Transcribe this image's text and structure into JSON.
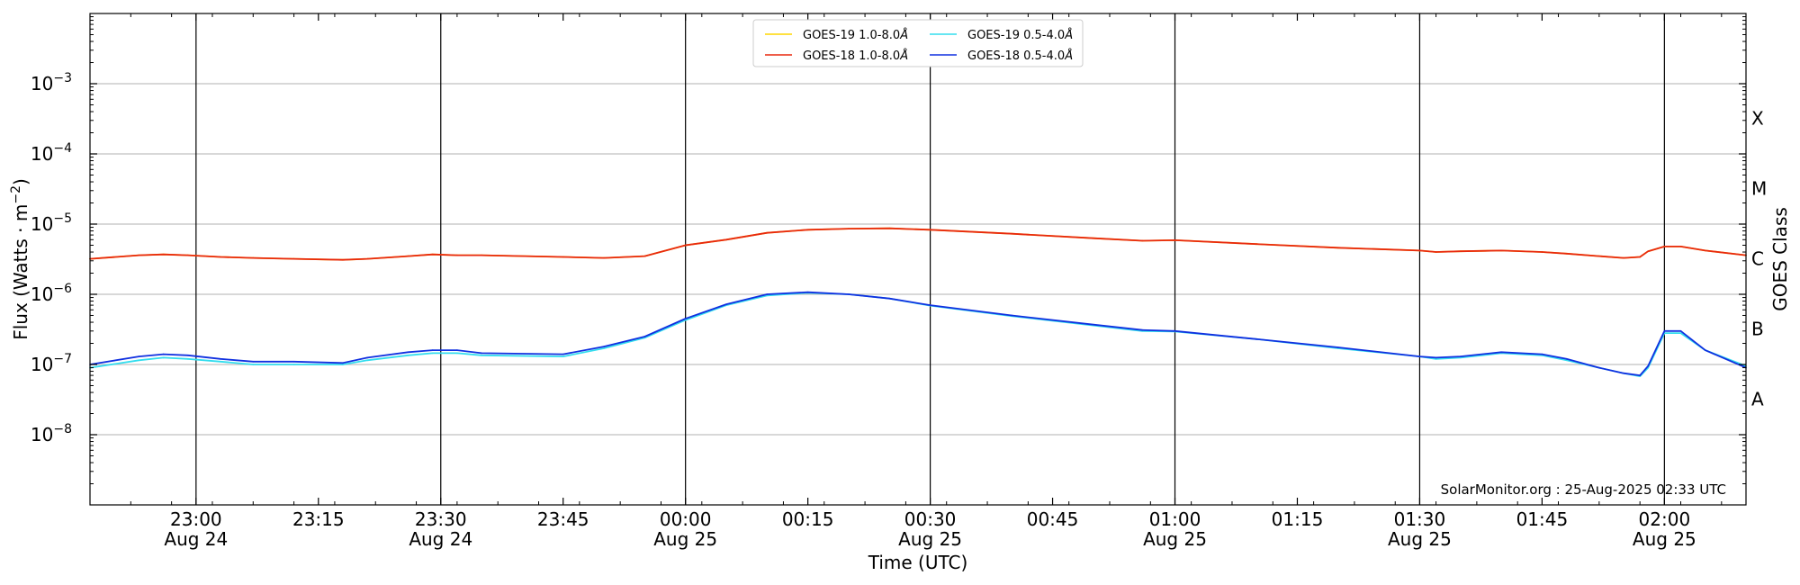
{
  "chart_data": {
    "type": "line",
    "y_scale": "log",
    "ylim": [
      1e-09,
      0.01
    ],
    "xlim": [
      "2025-08-24 22:47",
      "2025-08-25 02:10"
    ],
    "grid": "horizontal at decades; vertical lines at half-hour marks",
    "xlabel": "Time (UTC)",
    "ylabel": "Flux (Watts · m",
    "ylabel_sup": "−2",
    "ylabel_close": ")",
    "right_axis_label": "GOES Class",
    "y_ticks": [
      {
        "base": "10",
        "exp": "−8",
        "value": 1e-08
      },
      {
        "base": "10",
        "exp": "−7",
        "value": 1e-07
      },
      {
        "base": "10",
        "exp": "−6",
        "value": 1e-06
      },
      {
        "base": "10",
        "exp": "−5",
        "value": 1e-05
      },
      {
        "base": "10",
        "exp": "−4",
        "value": 0.0001
      },
      {
        "base": "10",
        "exp": "−3",
        "value": 0.001
      }
    ],
    "goes_classes": [
      {
        "label": "A",
        "value": 3.2e-08
      },
      {
        "label": "B",
        "value": 3.2e-07
      },
      {
        "label": "C",
        "value": 3.2e-06
      },
      {
        "label": "M",
        "value": 3.2e-05
      },
      {
        "label": "X",
        "value": 0.00032
      }
    ],
    "x_ticks": [
      {
        "time": "2025-08-24 23:00",
        "label": "23:00",
        "date": "Aug 24",
        "vline": true
      },
      {
        "time": "2025-08-24 23:15",
        "label": "23:15",
        "date": "",
        "vline": false
      },
      {
        "time": "2025-08-24 23:30",
        "label": "23:30",
        "date": "Aug 24",
        "vline": true
      },
      {
        "time": "2025-08-24 23:45",
        "label": "23:45",
        "date": "",
        "vline": false
      },
      {
        "time": "2025-08-25 00:00",
        "label": "00:00",
        "date": "Aug 25",
        "vline": true
      },
      {
        "time": "2025-08-25 00:15",
        "label": "00:15",
        "date": "",
        "vline": false
      },
      {
        "time": "2025-08-25 00:30",
        "label": "00:30",
        "date": "Aug 25",
        "vline": true
      },
      {
        "time": "2025-08-25 00:45",
        "label": "00:45",
        "date": "",
        "vline": false
      },
      {
        "time": "2025-08-25 01:00",
        "label": "01:00",
        "date": "Aug 25",
        "vline": true
      },
      {
        "time": "2025-08-25 01:15",
        "label": "01:15",
        "date": "",
        "vline": false
      },
      {
        "time": "2025-08-25 01:30",
        "label": "01:30",
        "date": "Aug 25",
        "vline": true
      },
      {
        "time": "2025-08-25 01:45",
        "label": "01:45",
        "date": "",
        "vline": false
      },
      {
        "time": "2025-08-25 02:00",
        "label": "02:00",
        "date": "Aug 25",
        "vline": true
      }
    ],
    "x_times": [
      "2025-08-24 22:47",
      "2025-08-24 22:53",
      "2025-08-24 22:56",
      "2025-08-24 22:59",
      "2025-08-24 23:03",
      "2025-08-24 23:07",
      "2025-08-24 23:12",
      "2025-08-24 23:18",
      "2025-08-24 23:21",
      "2025-08-24 23:26",
      "2025-08-24 23:29",
      "2025-08-24 23:32",
      "2025-08-24 23:35",
      "2025-08-24 23:45",
      "2025-08-24 23:50",
      "2025-08-24 23:55",
      "2025-08-25 00:00",
      "2025-08-25 00:05",
      "2025-08-25 00:10",
      "2025-08-25 00:15",
      "2025-08-25 00:20",
      "2025-08-25 00:25",
      "2025-08-25 00:30",
      "2025-08-25 00:40",
      "2025-08-25 00:50",
      "2025-08-25 00:56",
      "2025-08-25 01:00",
      "2025-08-25 01:10",
      "2025-08-25 01:20",
      "2025-08-25 01:30",
      "2025-08-25 01:32",
      "2025-08-25 01:35",
      "2025-08-25 01:40",
      "2025-08-25 01:45",
      "2025-08-25 01:48",
      "2025-08-25 01:52",
      "2025-08-25 01:55",
      "2025-08-25 01:57",
      "2025-08-25 01:58",
      "2025-08-25 02:00",
      "2025-08-25 02:02",
      "2025-08-25 02:05",
      "2025-08-25 02:10"
    ],
    "series": [
      {
        "name": "GOES-19 1.0-8.0",
        "unit_symbol": "Å",
        "color": "#ffd700",
        "values": [
          3.2e-06,
          3.6e-06,
          3.7e-06,
          3.6e-06,
          3.4e-06,
          3.3e-06,
          3.2e-06,
          3.1e-06,
          3.2e-06,
          3.5e-06,
          3.7e-06,
          3.6e-06,
          3.6e-06,
          3.4e-06,
          3.3e-06,
          3.5e-06,
          5e-06,
          6e-06,
          7.5e-06,
          8.3e-06,
          8.6e-06,
          8.7e-06,
          8.3e-06,
          7.3e-06,
          6.3e-06,
          5.8e-06,
          5.9e-06,
          5.2e-06,
          4.6e-06,
          4.2e-06,
          4e-06,
          4.1e-06,
          4.2e-06,
          4e-06,
          3.8e-06,
          3.5e-06,
          3.3e-06,
          3.4e-06,
          4.1e-06,
          4.8e-06,
          4.8e-06,
          4.2e-06,
          3.6e-06
        ]
      },
      {
        "name": "GOES-18 1.0-8.0",
        "unit_symbol": "Å",
        "color": "#e8280f",
        "values": [
          3.2e-06,
          3.6e-06,
          3.7e-06,
          3.6e-06,
          3.4e-06,
          3.3e-06,
          3.2e-06,
          3.1e-06,
          3.2e-06,
          3.5e-06,
          3.7e-06,
          3.6e-06,
          3.6e-06,
          3.4e-06,
          3.3e-06,
          3.5e-06,
          5e-06,
          6e-06,
          7.5e-06,
          8.3e-06,
          8.6e-06,
          8.7e-06,
          8.3e-06,
          7.3e-06,
          6.3e-06,
          5.8e-06,
          5.9e-06,
          5.2e-06,
          4.6e-06,
          4.2e-06,
          4e-06,
          4.1e-06,
          4.2e-06,
          4e-06,
          3.8e-06,
          3.5e-06,
          3.3e-06,
          3.4e-06,
          4.1e-06,
          4.8e-06,
          4.8e-06,
          4.2e-06,
          3.6e-06
        ]
      },
      {
        "name": "GOES-19 0.5-4.0",
        "unit_symbol": "Å",
        "color": "#33ddee",
        "values": [
          9e-08,
          1.15e-07,
          1.25e-07,
          1.2e-07,
          1.1e-07,
          1e-07,
          1e-07,
          1e-07,
          1.15e-07,
          1.35e-07,
          1.45e-07,
          1.45e-07,
          1.35e-07,
          1.3e-07,
          1.7e-07,
          2.4e-07,
          4.3e-07,
          7e-07,
          9.6e-07,
          1.05e-06,
          1e-06,
          8.7e-07,
          6.9e-07,
          4.9e-07,
          3.6e-07,
          3e-07,
          2.95e-07,
          2.3e-07,
          1.7e-07,
          1.3e-07,
          1.2e-07,
          1.25e-07,
          1.45e-07,
          1.35e-07,
          1.15e-07,
          9e-08,
          7.5e-08,
          6.8e-08,
          9e-08,
          2.8e-07,
          2.8e-07,
          1.6e-07,
          9.5e-08
        ]
      },
      {
        "name": "GOES-18 0.5-4.0",
        "unit_symbol": "Å",
        "color": "#1030e0",
        "values": [
          1e-07,
          1.3e-07,
          1.4e-07,
          1.35e-07,
          1.2e-07,
          1.1e-07,
          1.1e-07,
          1.05e-07,
          1.25e-07,
          1.5e-07,
          1.6e-07,
          1.6e-07,
          1.45e-07,
          1.4e-07,
          1.8e-07,
          2.5e-07,
          4.5e-07,
          7.2e-07,
          1e-06,
          1.07e-06,
          1e-06,
          8.7e-07,
          7e-07,
          5e-07,
          3.7e-07,
          3.1e-07,
          3e-07,
          2.3e-07,
          1.75e-07,
          1.3e-07,
          1.25e-07,
          1.3e-07,
          1.5e-07,
          1.4e-07,
          1.2e-07,
          9e-08,
          7.5e-08,
          7e-08,
          9.5e-08,
          3e-07,
          3e-07,
          1.6e-07,
          9e-08
        ]
      }
    ],
    "legend_position": "top-center",
    "credit": "SolarMonitor.org : 25-Aug-2025 02:33 UTC"
  }
}
